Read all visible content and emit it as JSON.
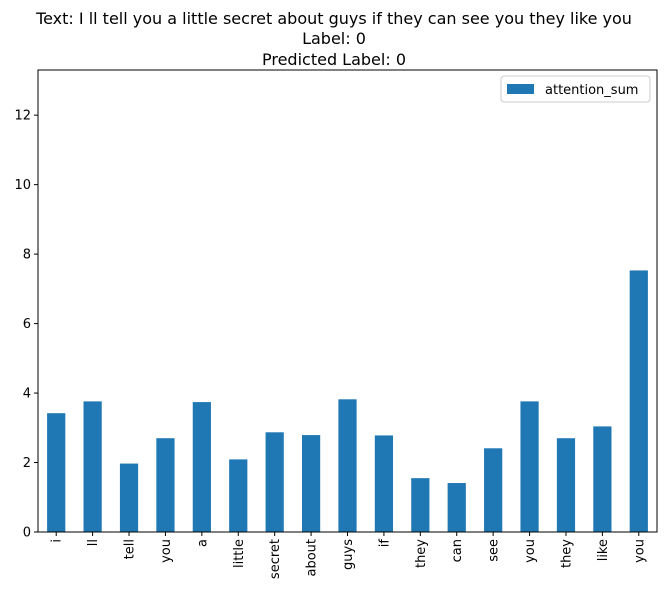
{
  "chart_data": {
    "type": "bar",
    "title_lines": [
      "Text: I ll tell you a little secret about guys if they can see you they like you",
      "Label: 0",
      "Predicted Label: 0"
    ],
    "xlabel": "",
    "ylabel": "",
    "categories": [
      "i",
      "ll",
      "tell",
      "you",
      "a",
      "little",
      "secret",
      "about",
      "guys",
      "if",
      "they",
      "can",
      "see",
      "you",
      "they",
      "like",
      "you"
    ],
    "series": [
      {
        "name": "attention_sum",
        "color": "#1f77b4",
        "values": [
          3.42,
          3.76,
          1.97,
          2.7,
          3.74,
          2.09,
          2.87,
          2.79,
          3.82,
          2.78,
          1.55,
          1.41,
          2.41,
          3.76,
          2.7,
          3.04,
          7.53
        ]
      }
    ],
    "ylim": [
      0,
      13.3
    ],
    "yticks": [
      0,
      2,
      4,
      6,
      8,
      10,
      12
    ],
    "grid": false,
    "legend_position": "top-right"
  }
}
